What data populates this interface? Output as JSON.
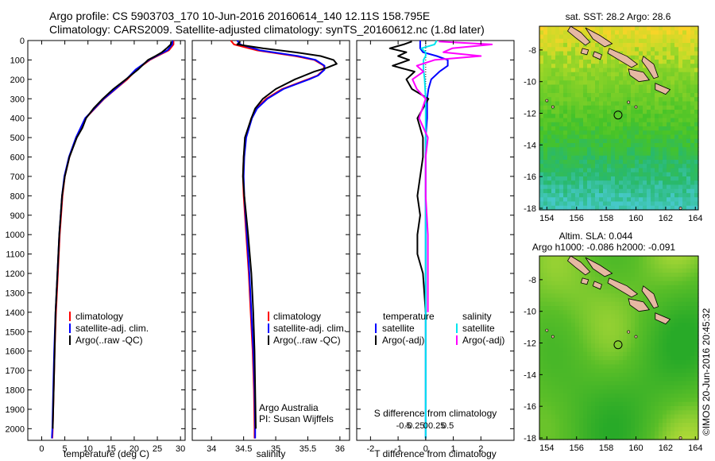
{
  "header": {
    "title_line1": "Argo profile: CS 5903703_170 10-Jun-2016 20160614_140 12.11S 158.795E",
    "title_line2": "Climatology: CARS2009. Satellite-adjusted climatology: synTS_20160612.nc (1.8d later)"
  },
  "colors": {
    "climatology": "#ff0000",
    "satellite": "#0000ff",
    "argo": "#000000",
    "salinity_satellite": "#00e5ee",
    "salinity_argo": "#ff00ff",
    "land": "#e6b8a2"
  },
  "chart_data": [
    {
      "id": "temperature",
      "type": "line",
      "xlabel": "temperature (deg C)",
      "ylabel": "",
      "xlim": [
        -3,
        31
      ],
      "ylim": [
        2060,
        0
      ],
      "xticks": [
        0,
        5,
        10,
        15,
        20,
        25,
        30
      ],
      "yticks": [
        0,
        100,
        200,
        300,
        400,
        500,
        600,
        700,
        800,
        900,
        1000,
        1100,
        1200,
        1300,
        1400,
        1500,
        1600,
        1700,
        1800,
        1900,
        2000
      ],
      "legend": [
        "climatology",
        "satellite-adj. clim.",
        "Argo(..raw -QC)"
      ],
      "legend_location": "lower-center",
      "series": [
        {
          "name": "climatology",
          "color": "#ff0000",
          "pressure": [
            0,
            20,
            50,
            80,
            100,
            150,
            200,
            250,
            300,
            350,
            400,
            500,
            600,
            700,
            800,
            1000,
            1200,
            1400,
            1600,
            1800,
            2000,
            2050
          ],
          "values": [
            28.5,
            28.5,
            27.5,
            25.0,
            23.4,
            20.5,
            18.5,
            16.0,
            13.5,
            11.5,
            9.5,
            7.5,
            6.0,
            5.0,
            4.5,
            3.9,
            3.5,
            3.1,
            2.8,
            2.6,
            2.4,
            2.3
          ]
        },
        {
          "name": "satellite-adj. clim.",
          "color": "#0000ff",
          "pressure": [
            0,
            20,
            50,
            80,
            100,
            150,
            200,
            250,
            300,
            350,
            400,
            500,
            600,
            700,
            800,
            1000,
            1200,
            1400,
            1600,
            1800,
            2000,
            2050
          ],
          "values": [
            28.3,
            28.2,
            27.2,
            24.8,
            23.2,
            20.3,
            18.3,
            15.9,
            13.4,
            11.4,
            9.4,
            7.4,
            5.9,
            4.9,
            4.4,
            3.8,
            3.4,
            3.0,
            2.7,
            2.5,
            2.3,
            2.2
          ]
        },
        {
          "name": "Argo(..raw -QC)",
          "color": "#000000",
          "pressure": [
            5,
            20,
            40,
            60,
            80,
            100,
            150,
            200,
            250,
            300,
            350,
            400,
            450,
            500,
            600,
            700,
            800,
            1000,
            1200,
            1400,
            1600,
            1800,
            2000
          ],
          "values": [
            28.0,
            27.9,
            27.0,
            26.0,
            24.6,
            23.0,
            20.8,
            18.2,
            15.5,
            13.2,
            11.2,
            9.6,
            8.8,
            7.6,
            6.0,
            5.0,
            4.4,
            3.8,
            3.4,
            3.0,
            2.8,
            2.6,
            2.4
          ]
        }
      ]
    },
    {
      "id": "salinity",
      "type": "line",
      "xlabel": "salinity",
      "ylabel": "",
      "xlim": [
        33.7,
        36.15
      ],
      "ylim": [
        2060,
        0
      ],
      "xticks": [
        34,
        34.5,
        35,
        35.5,
        36
      ],
      "legend": [
        "climatology",
        "satellite-adj. clim.",
        "Argo(..raw -QC)"
      ],
      "legend_location": "lower-center",
      "annotations": [
        "Argo Australia",
        "PI: Susan Wijffels"
      ],
      "series": [
        {
          "name": "climatology",
          "color": "#ff0000",
          "pressure": [
            0,
            20,
            50,
            80,
            100,
            130,
            150,
            180,
            200,
            250,
            300,
            350,
            400,
            500,
            600,
            700,
            800,
            1000,
            1200,
            1400,
            1600,
            1800,
            2000,
            2050
          ],
          "values": [
            34.3,
            34.35,
            34.7,
            35.3,
            35.6,
            35.75,
            35.75,
            35.65,
            35.5,
            35.1,
            34.85,
            34.7,
            34.62,
            34.53,
            34.5,
            34.49,
            34.5,
            34.54,
            34.58,
            34.61,
            34.64,
            34.66,
            34.67,
            34.67
          ]
        },
        {
          "name": "satellite-adj. clim.",
          "color": "#0000ff",
          "pressure": [
            0,
            20,
            50,
            80,
            100,
            130,
            150,
            180,
            200,
            250,
            300,
            350,
            400,
            500,
            600,
            700,
            800,
            1000,
            1200,
            1400,
            1600,
            1800,
            2000,
            2050
          ],
          "values": [
            34.4,
            34.45,
            34.75,
            35.35,
            35.62,
            35.76,
            35.76,
            35.66,
            35.52,
            35.12,
            34.87,
            34.71,
            34.63,
            34.54,
            34.51,
            34.5,
            34.51,
            34.55,
            34.59,
            34.62,
            34.65,
            34.67,
            34.68,
            34.68
          ]
        },
        {
          "name": "Argo(..raw -QC)",
          "color": "#000000",
          "pressure": [
            5,
            20,
            40,
            60,
            80,
            100,
            120,
            140,
            160,
            200,
            250,
            300,
            350,
            400,
            500,
            600,
            700,
            800,
            1000,
            1200,
            1400,
            1600,
            1800,
            2000
          ],
          "values": [
            34.45,
            34.4,
            34.8,
            35.3,
            35.7,
            35.9,
            35.95,
            35.8,
            35.6,
            35.3,
            35.0,
            34.8,
            34.68,
            34.62,
            34.52,
            34.5,
            34.49,
            34.51,
            34.57,
            34.62,
            34.65,
            34.67,
            34.68,
            34.69
          ]
        }
      ]
    },
    {
      "id": "differences",
      "type": "line",
      "xlabel": "T difference from climatology",
      "xlabel_top": "S difference from climatology",
      "xlim": [
        -2.5,
        3.2
      ],
      "ylim": [
        2060,
        0
      ],
      "xticks": [
        -2,
        -1,
        0,
        1,
        2
      ],
      "xticks_salinity": [
        "-0.5",
        "-0.25",
        "0",
        "0.25",
        "0.5"
      ],
      "legend_headers": [
        "temperature",
        "salinity"
      ],
      "legend": [
        "satellite",
        "Argo(-adj)",
        "satellite",
        "Argo(-adj)"
      ],
      "series": [
        {
          "name": "satellite",
          "variable": "temperature",
          "color": "#0000ff",
          "pressure": [
            0,
            20,
            40,
            60,
            80,
            100,
            130,
            160,
            200,
            250,
            300,
            400,
            500,
            600,
            800,
            1000,
            1400,
            1800,
            2050
          ],
          "values": [
            -0.2,
            -0.2,
            -0.2,
            -0.1,
            0.4,
            0.8,
            0.8,
            0.5,
            0.2,
            0.1,
            0.05,
            0.05,
            0.0,
            0.0,
            0.0,
            0.0,
            0.0,
            0.0,
            0.0
          ]
        },
        {
          "name": "Argo(-adj)",
          "variable": "temperature",
          "color": "#000000",
          "pressure": [
            5,
            20,
            40,
            60,
            80,
            100,
            130,
            160,
            200,
            250,
            300,
            400,
            500,
            600,
            700,
            800,
            900,
            1000,
            1100,
            1200,
            1400
          ],
          "values": [
            -0.5,
            -0.8,
            -1.3,
            -0.7,
            -1.0,
            -0.6,
            -1.2,
            -0.4,
            -0.7,
            -0.5,
            0.1,
            -0.3,
            -0.1,
            -0.1,
            -0.2,
            -0.3,
            -0.2,
            -0.3,
            -0.3,
            -0.1,
            0.0
          ]
        },
        {
          "name": "satellite",
          "variable": "salinity",
          "color": "#00e5ee",
          "pressure": [
            0,
            20,
            40,
            60,
            80,
            100,
            150,
            200,
            300,
            400,
            600,
            800,
            1000,
            1400,
            1800,
            2050
          ],
          "values": [
            0.5,
            0.4,
            -0.2,
            0.0,
            0.0,
            -0.1,
            -0.1,
            -0.05,
            0.0,
            0.0,
            0.0,
            0.0,
            0.0,
            0.0,
            0.0,
            0.0
          ]
        },
        {
          "name": "Argo(-adj)",
          "variable": "salinity",
          "color": "#ff00ff",
          "pressure": [
            5,
            20,
            40,
            60,
            80,
            100,
            130,
            160,
            200,
            250,
            300,
            400,
            500,
            600,
            800,
            1000,
            1200,
            1400
          ],
          "values": [
            0.6,
            3.0,
            1.2,
            0.8,
            2.5,
            0.4,
            -0.4,
            -0.1,
            -0.6,
            -0.4,
            0.0,
            -0.3,
            0.1,
            0.0,
            0.0,
            0.1,
            0.1,
            0.1
          ]
        }
      ]
    },
    {
      "id": "sst_map",
      "type": "heatmap",
      "title": "sat. SST: 28.2 Argo: 28.6",
      "xlim": [
        153.5,
        164.2
      ],
      "ylim": [
        -18.1,
        -6.5
      ],
      "xticks": [
        154,
        156,
        158,
        160,
        162,
        164
      ],
      "yticks": [
        -8,
        -10,
        -12,
        -14,
        -16,
        -18
      ],
      "argo_position": {
        "lon": 158.795,
        "lat": -12.11
      }
    },
    {
      "id": "sla_map",
      "type": "heatmap",
      "title_line1": "Altim. SLA: 0.044",
      "title_line2": "Argo h1000: -0.086 h2000: -0.091",
      "xlim": [
        153.5,
        164.2
      ],
      "ylim": [
        -18.1,
        -6.5
      ],
      "xticks": [
        154,
        156,
        158,
        160,
        162,
        164
      ],
      "yticks": [
        -8,
        -10,
        -12,
        -14,
        -16,
        -18
      ],
      "argo_position": {
        "lon": 158.795,
        "lat": -12.11
      }
    }
  ],
  "footer": {
    "credit": "©IMOS 20-Jun-2016 20:45:32"
  }
}
